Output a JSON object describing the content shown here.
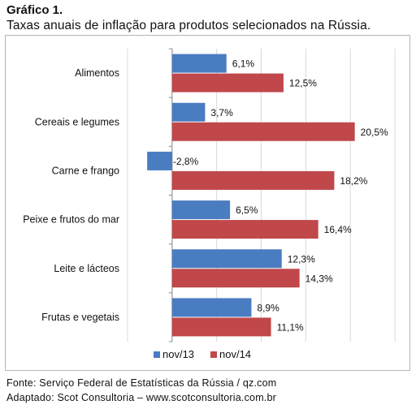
{
  "figure": {
    "label": "Gráfico 1.",
    "title": "Taxas anuais de inflação para produtos selecionados na Rússia."
  },
  "chart_data": {
    "type": "bar",
    "orientation": "horizontal",
    "categories": [
      "Alimentos",
      "Cereais e legumes",
      "Carne e frango",
      "Peixe e frutos do mar",
      "Leite e lácteos",
      "Frutas e vegetais"
    ],
    "series": [
      {
        "name": "nov/13",
        "values": [
          6.1,
          3.7,
          -2.8,
          6.5,
          12.3,
          8.9
        ],
        "labels": [
          "6,1%",
          "3,7%",
          "-2,8%",
          "6,5%",
          "12,3%",
          "8,9%"
        ],
        "color": "#4a7cc1"
      },
      {
        "name": "nov/14",
        "values": [
          12.5,
          20.5,
          18.2,
          16.4,
          14.3,
          11.1
        ],
        "labels": [
          "12,5%",
          "20,5%",
          "18,2%",
          "16,4%",
          "14,3%",
          "11,1%"
        ],
        "color": "#c0474a"
      }
    ],
    "xlim": [
      -5,
      25
    ],
    "grid": true,
    "legend_position": "bottom",
    "xlabel": "",
    "ylabel": ""
  },
  "source": {
    "line1": "Fonte: Serviço Federal de Estatísticas da Rússia / qz.com",
    "line2": "Adaptado: Scot Consultoria – www.scotconsultoria.com.br"
  }
}
